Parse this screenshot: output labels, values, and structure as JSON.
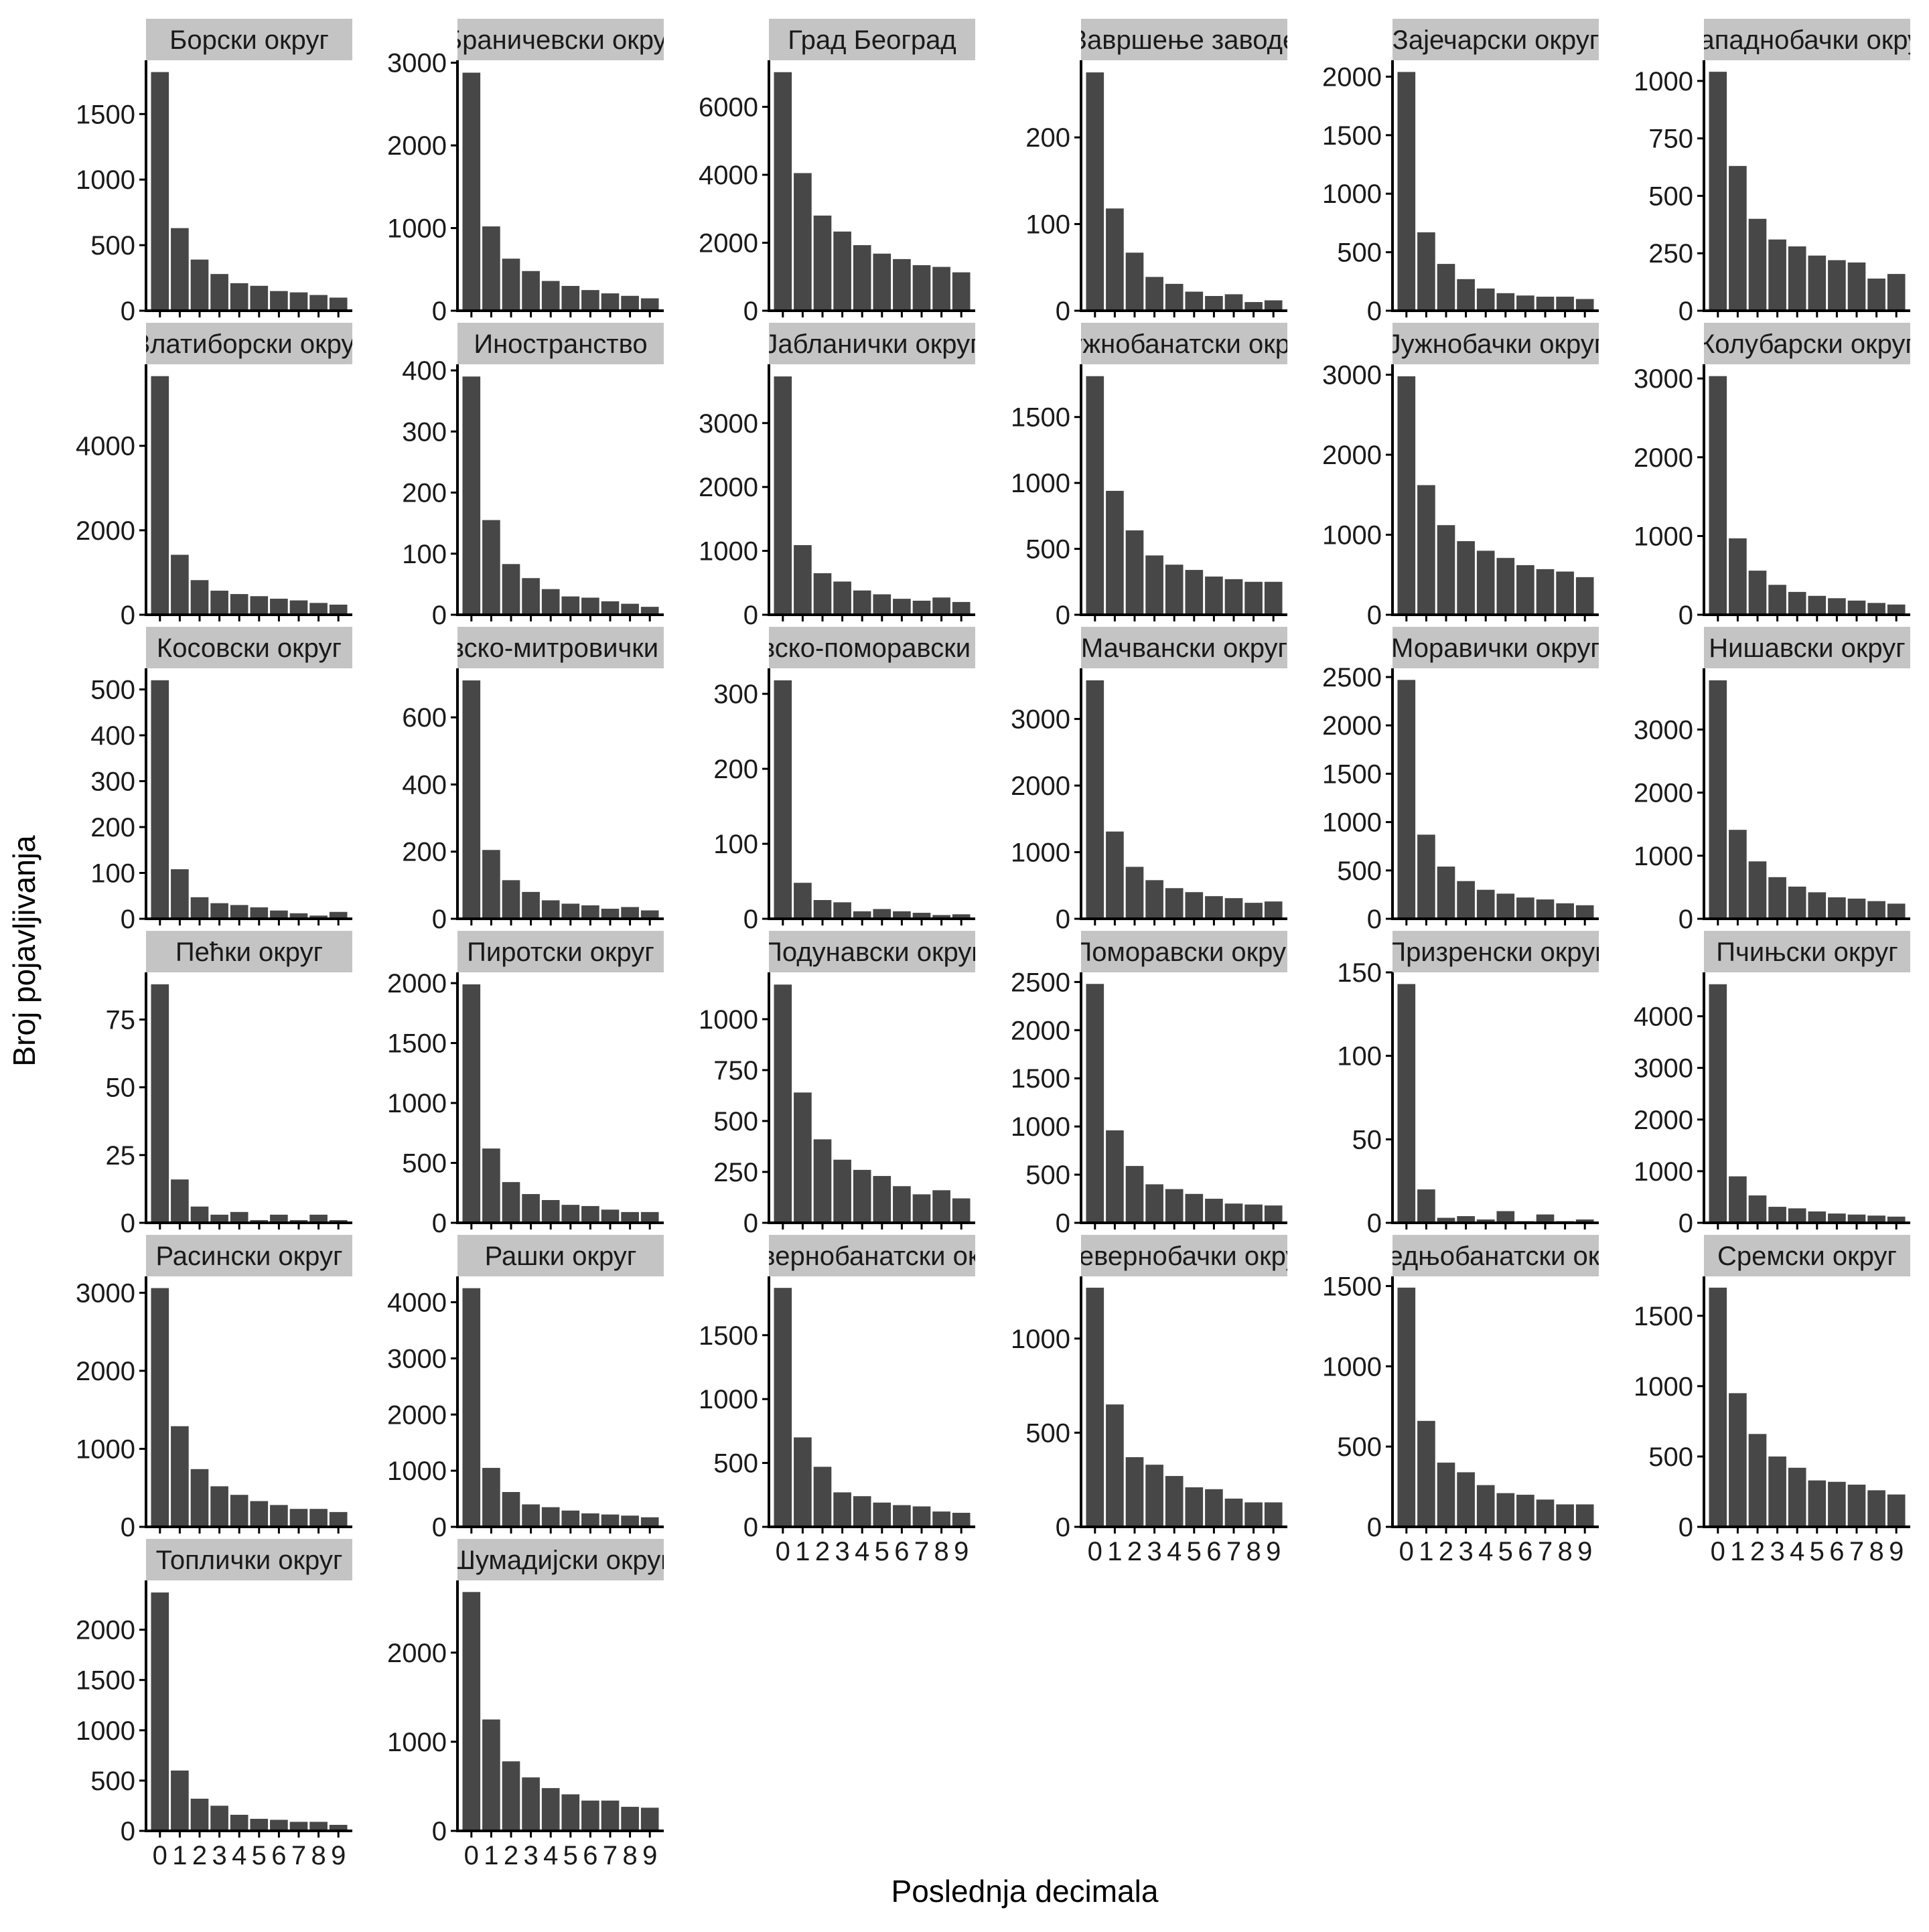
{
  "chart_data": {
    "type": "bar",
    "facet_layout": "wrap",
    "xlabel": "Poslednja decimala",
    "ylabel": "Broj pojavljivanja",
    "x_categories": [
      "0",
      "1",
      "2",
      "3",
      "4",
      "5",
      "6",
      "7",
      "8",
      "9"
    ],
    "bar_color": "#474747",
    "strip_color": "#c4c4c4",
    "axis_color": "#000000",
    "grid": false,
    "panels": [
      {
        "title": "Борски округ",
        "values": [
          1820,
          630,
          390,
          280,
          210,
          190,
          150,
          140,
          120,
          100
        ],
        "yticks": [
          0,
          500,
          1000,
          1500
        ],
        "ylim": [
          0,
          1910
        ]
      },
      {
        "title": "Браничевски округ",
        "values": [
          2880,
          1020,
          630,
          480,
          360,
          300,
          250,
          210,
          180,
          150
        ],
        "yticks": [
          0,
          1000,
          2000,
          3000
        ],
        "ylim": [
          0,
          3030
        ]
      },
      {
        "title": "Град Београд",
        "values": [
          7020,
          4050,
          2800,
          2330,
          1930,
          1680,
          1520,
          1340,
          1290,
          1130
        ],
        "yticks": [
          0,
          2000,
          4000,
          6000
        ],
        "ylim": [
          0,
          7370
        ]
      },
      {
        "title": "Завршење заводе",
        "values": [
          275,
          118,
          67,
          39,
          31,
          22,
          17,
          19,
          10,
          12
        ],
        "yticks": [
          0,
          100,
          200
        ],
        "ylim": [
          0,
          289
        ]
      },
      {
        "title": "Зајечарски округ",
        "values": [
          2040,
          670,
          400,
          270,
          190,
          150,
          130,
          120,
          120,
          100
        ],
        "yticks": [
          0,
          500,
          1000,
          1500,
          2000
        ],
        "ylim": [
          0,
          2140
        ]
      },
      {
        "title": "Западнобачки округ",
        "values": [
          1040,
          630,
          400,
          310,
          280,
          240,
          220,
          210,
          140,
          160
        ],
        "yticks": [
          0,
          250,
          500,
          750,
          1000
        ],
        "ylim": [
          0,
          1090
        ]
      },
      {
        "title": "Златиборски округ",
        "values": [
          5650,
          1420,
          820,
          570,
          490,
          440,
          380,
          340,
          280,
          240
        ],
        "yticks": [
          0,
          2000,
          4000
        ],
        "ylim": [
          0,
          5930
        ]
      },
      {
        "title": "Иностранство",
        "values": [
          390,
          155,
          83,
          60,
          42,
          30,
          28,
          22,
          18,
          13
        ],
        "yticks": [
          0,
          100,
          200,
          300,
          400
        ],
        "ylim": [
          0,
          410
        ]
      },
      {
        "title": "Јабланички округ",
        "values": [
          3730,
          1090,
          650,
          520,
          380,
          320,
          250,
          220,
          270,
          200
        ],
        "yticks": [
          0,
          1000,
          2000,
          3000
        ],
        "ylim": [
          0,
          3920
        ]
      },
      {
        "title": "Јужнобанатски округ",
        "values": [
          1810,
          940,
          640,
          450,
          380,
          340,
          290,
          270,
          250,
          250
        ],
        "yticks": [
          0,
          500,
          1000,
          1500
        ],
        "ylim": [
          0,
          1900
        ]
      },
      {
        "title": "Јужнобачки округ",
        "values": [
          2980,
          1620,
          1120,
          920,
          800,
          710,
          620,
          570,
          540,
          470
        ],
        "yticks": [
          0,
          1000,
          2000,
          3000
        ],
        "ylim": [
          0,
          3130
        ]
      },
      {
        "title": "Колубарски округ",
        "values": [
          3030,
          970,
          560,
          380,
          290,
          240,
          210,
          180,
          150,
          130
        ],
        "yticks": [
          0,
          1000,
          2000,
          3000
        ],
        "ylim": [
          0,
          3180
        ]
      },
      {
        "title": "Косовски округ",
        "values": [
          520,
          108,
          47,
          34,
          30,
          25,
          18,
          12,
          7,
          15
        ],
        "yticks": [
          0,
          100,
          200,
          300,
          400,
          500
        ],
        "ylim": [
          0,
          546
        ]
      },
      {
        "title": "Косовско-митровички округ",
        "values": [
          710,
          205,
          115,
          80,
          55,
          45,
          40,
          30,
          35,
          25
        ],
        "yticks": [
          0,
          200,
          400,
          600
        ],
        "ylim": [
          0,
          746
        ]
      },
      {
        "title": "Косовско-поморавски округ",
        "values": [
          318,
          48,
          25,
          22,
          10,
          13,
          10,
          8,
          5,
          6
        ],
        "yticks": [
          0,
          100,
          200,
          300
        ],
        "ylim": [
          0,
          334
        ]
      },
      {
        "title": "Мачвански округ",
        "values": [
          3580,
          1310,
          780,
          580,
          460,
          400,
          340,
          310,
          240,
          260
        ],
        "yticks": [
          0,
          1000,
          2000,
          3000
        ],
        "ylim": [
          0,
          3760
        ]
      },
      {
        "title": "Моравички округ",
        "values": [
          2470,
          870,
          540,
          390,
          300,
          260,
          220,
          200,
          160,
          140
        ],
        "yticks": [
          0,
          500,
          1000,
          1500,
          2000,
          2500
        ],
        "ylim": [
          0,
          2590
        ]
      },
      {
        "title": "Нишавски округ",
        "values": [
          3780,
          1410,
          910,
          660,
          510,
          420,
          340,
          320,
          280,
          240
        ],
        "yticks": [
          0,
          1000,
          2000,
          3000
        ],
        "ylim": [
          0,
          3970
        ]
      },
      {
        "title": "Пећки округ",
        "values": [
          88,
          16,
          6,
          3,
          4,
          1,
          3,
          1,
          3,
          1
        ],
        "yticks": [
          0,
          25,
          50,
          75
        ],
        "ylim": [
          0,
          92.4
        ]
      },
      {
        "title": "Пиротски округ",
        "values": [
          1990,
          620,
          340,
          240,
          190,
          150,
          140,
          110,
          90,
          90
        ],
        "yticks": [
          0,
          500,
          1000,
          1500,
          2000
        ],
        "ylim": [
          0,
          2090
        ]
      },
      {
        "title": "Подунавски округ",
        "values": [
          1170,
          640,
          410,
          310,
          260,
          230,
          180,
          140,
          160,
          120
        ],
        "yticks": [
          0,
          250,
          500,
          750,
          1000
        ],
        "ylim": [
          0,
          1230
        ]
      },
      {
        "title": "Поморавски округ",
        "values": [
          2480,
          960,
          590,
          400,
          350,
          300,
          250,
          200,
          190,
          180
        ],
        "yticks": [
          0,
          500,
          1000,
          1500,
          2000,
          2500
        ],
        "ylim": [
          0,
          2600
        ]
      },
      {
        "title": "Призренски округ",
        "values": [
          143,
          20,
          3,
          4,
          2,
          7,
          1,
          5,
          1,
          2
        ],
        "yticks": [
          0,
          50,
          100,
          150
        ],
        "ylim": [
          0,
          150
        ]
      },
      {
        "title": "Пчињски округ",
        "values": [
          4620,
          900,
          530,
          310,
          280,
          220,
          180,
          160,
          140,
          120
        ],
        "yticks": [
          0,
          1000,
          2000,
          3000,
          4000
        ],
        "ylim": [
          0,
          4850
        ]
      },
      {
        "title": "Расински округ",
        "values": [
          3060,
          1290,
          740,
          520,
          410,
          330,
          280,
          230,
          230,
          190
        ],
        "yticks": [
          0,
          1000,
          2000,
          3000
        ],
        "ylim": [
          0,
          3210
        ]
      },
      {
        "title": "Рашки округ",
        "values": [
          4250,
          1050,
          620,
          400,
          350,
          290,
          240,
          220,
          200,
          170
        ],
        "yticks": [
          0,
          1000,
          2000,
          3000,
          4000
        ],
        "ylim": [
          0,
          4460
        ]
      },
      {
        "title": "Севернобанатски округ",
        "values": [
          1870,
          700,
          470,
          270,
          240,
          190,
          170,
          160,
          120,
          110
        ],
        "yticks": [
          0,
          500,
          1000,
          1500
        ],
        "ylim": [
          0,
          1960
        ]
      },
      {
        "title": "Севернобачки округ",
        "values": [
          1270,
          650,
          370,
          330,
          270,
          210,
          200,
          150,
          130,
          130
        ],
        "yticks": [
          0,
          500,
          1000
        ],
        "ylim": [
          0,
          1330
        ]
      },
      {
        "title": "Средњобанатски округ",
        "values": [
          1490,
          660,
          400,
          340,
          260,
          210,
          200,
          170,
          140,
          140
        ],
        "yticks": [
          0,
          500,
          1000,
          1500
        ],
        "ylim": [
          0,
          1560
        ]
      },
      {
        "title": "Сремски округ",
        "values": [
          1700,
          950,
          660,
          500,
          420,
          330,
          320,
          300,
          260,
          230
        ],
        "yticks": [
          0,
          500,
          1000,
          1500
        ],
        "ylim": [
          0,
          1780
        ]
      },
      {
        "title": "Топлички округ",
        "values": [
          2370,
          600,
          320,
          250,
          160,
          120,
          110,
          90,
          90,
          60
        ],
        "yticks": [
          0,
          500,
          1000,
          1500,
          2000
        ],
        "ylim": [
          0,
          2490
        ]
      },
      {
        "title": "Шумадијски округ",
        "values": [
          2680,
          1250,
          780,
          600,
          480,
          410,
          340,
          340,
          270,
          260
        ],
        "yticks": [
          0,
          1000,
          2000
        ],
        "ylim": [
          0,
          2810
        ]
      }
    ]
  }
}
